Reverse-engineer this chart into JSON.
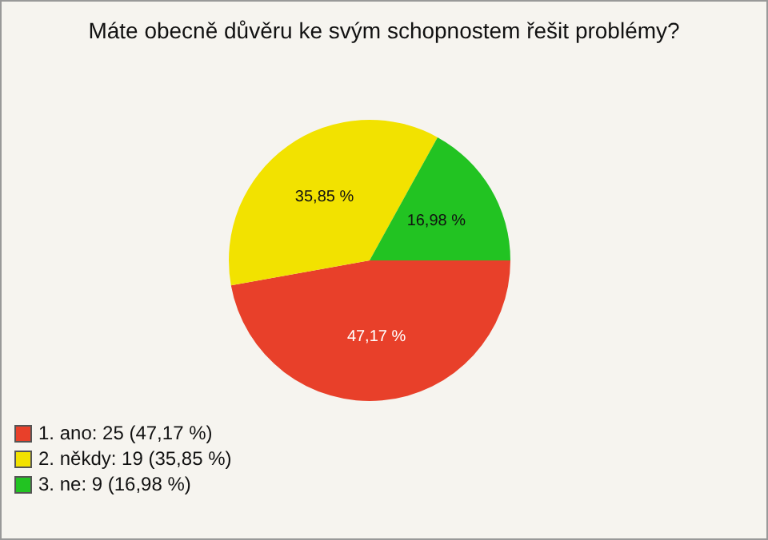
{
  "chart_data": {
    "type": "pie",
    "title": "Máte obecně důvěru ke svým schopnostem řešit problémy?",
    "categories": [
      "1. ano: 25 (47,17 %)",
      "2. někdy: 19 (35,85 %)",
      "3. ne: 9 (16,98 %)"
    ],
    "values": [
      47.17,
      35.85,
      16.98
    ],
    "value_labels": [
      "47,17 %",
      "35,85 %",
      "16,98 %"
    ],
    "colors": [
      "#e8402a",
      "#f2e200",
      "#22c322"
    ],
    "legend": "bottom left"
  }
}
